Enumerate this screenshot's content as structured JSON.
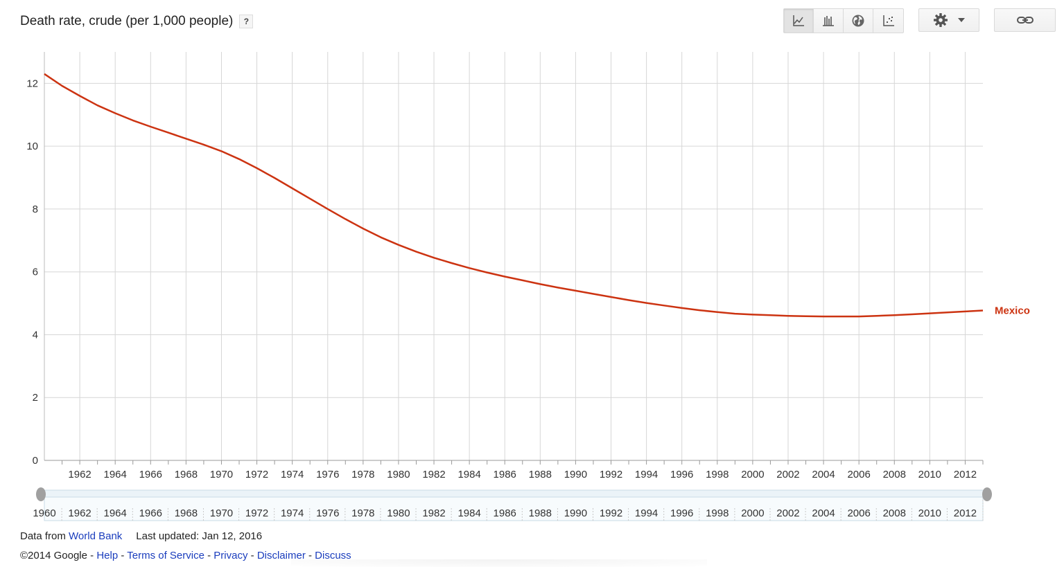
{
  "header": {
    "title": "Death rate, crude (per 1,000 people)",
    "help_label": "?"
  },
  "toolbar": {
    "buttons": [
      {
        "icon": "line-chart-icon",
        "active": true
      },
      {
        "icon": "bar-chart-icon",
        "active": false
      },
      {
        "icon": "globe-icon",
        "active": false
      },
      {
        "icon": "scatter-icon",
        "active": false
      }
    ],
    "settings_icon": "gear-icon",
    "link_icon": "link-icon"
  },
  "chart_data": {
    "type": "line",
    "title": "Death rate, crude (per 1,000 people)",
    "xlabel": "",
    "ylabel": "",
    "xlim": [
      1960,
      2013
    ],
    "ylim": [
      0,
      13
    ],
    "y_ticks": [
      0,
      2,
      4,
      6,
      8,
      10,
      12
    ],
    "x_ticks": [
      1962,
      1964,
      1966,
      1968,
      1970,
      1972,
      1974,
      1976,
      1978,
      1980,
      1982,
      1984,
      1986,
      1988,
      1990,
      1992,
      1994,
      1996,
      1998,
      2000,
      2002,
      2004,
      2006,
      2008,
      2010,
      2012
    ],
    "grid": true,
    "line_color": "#cc3311",
    "series": [
      {
        "name": "Mexico",
        "x": [
          1960,
          1961,
          1962,
          1963,
          1964,
          1965,
          1966,
          1967,
          1968,
          1969,
          1970,
          1971,
          1972,
          1973,
          1974,
          1975,
          1976,
          1977,
          1978,
          1979,
          1980,
          1981,
          1982,
          1983,
          1984,
          1985,
          1986,
          1987,
          1988,
          1989,
          1990,
          1991,
          1992,
          1993,
          1994,
          1995,
          1996,
          1997,
          1998,
          1999,
          2000,
          2001,
          2002,
          2003,
          2004,
          2005,
          2006,
          2007,
          2008,
          2009,
          2010,
          2011,
          2012,
          2013
        ],
        "values": [
          12.3,
          11.92,
          11.6,
          11.3,
          11.05,
          10.82,
          10.62,
          10.43,
          10.24,
          10.05,
          9.84,
          9.59,
          9.3,
          8.99,
          8.66,
          8.33,
          8.0,
          7.68,
          7.38,
          7.1,
          6.86,
          6.64,
          6.45,
          6.28,
          6.12,
          5.98,
          5.85,
          5.73,
          5.61,
          5.5,
          5.4,
          5.3,
          5.2,
          5.1,
          5.01,
          4.93,
          4.85,
          4.78,
          4.72,
          4.67,
          4.64,
          4.62,
          4.6,
          4.59,
          4.58,
          4.58,
          4.58,
          4.6,
          4.62,
          4.65,
          4.68,
          4.71,
          4.74,
          4.77
        ]
      }
    ]
  },
  "range_slider": {
    "labels": [
      "1960",
      "1962",
      "1964",
      "1966",
      "1968",
      "1970",
      "1972",
      "1974",
      "1976",
      "1978",
      "1980",
      "1982",
      "1984",
      "1986",
      "1988",
      "1990",
      "1992",
      "1994",
      "1996",
      "1998",
      "2000",
      "2002",
      "2004",
      "2006",
      "2008",
      "2010",
      "2012"
    ],
    "range": [
      1960,
      2013
    ]
  },
  "footer": {
    "data_from": "Data from ",
    "source_link": "World Bank",
    "last_updated": "Last updated: Jan 12, 2016",
    "copyright": "©2014 Google",
    "sep": " - ",
    "links": [
      "Help",
      "Terms of Service",
      "Privacy",
      "Disclaimer",
      "Discuss"
    ]
  }
}
